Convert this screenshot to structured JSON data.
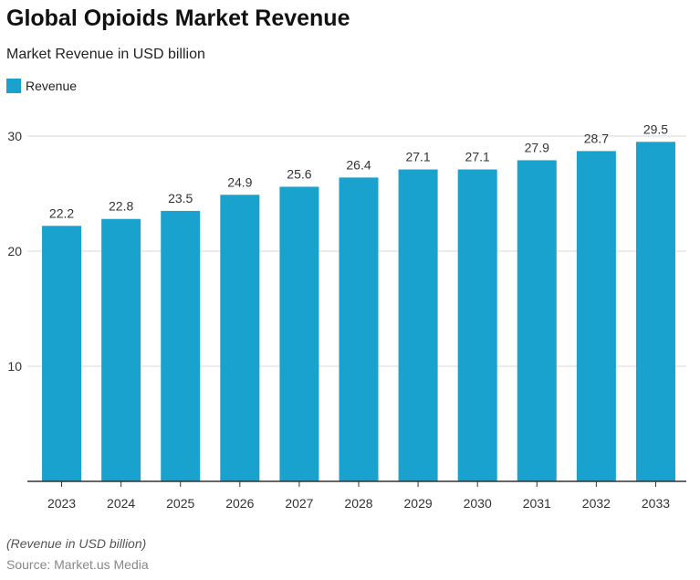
{
  "chart_data": {
    "type": "bar",
    "title": "Global Opioids Market Revenue",
    "subtitle": "Market Revenue in USD billion",
    "categories": [
      "2023",
      "2024",
      "2025",
      "2026",
      "2027",
      "2028",
      "2029",
      "2030",
      "2031",
      "2032",
      "2033"
    ],
    "series": [
      {
        "name": "Revenue",
        "values": [
          22.2,
          22.8,
          23.5,
          24.9,
          25.6,
          26.4,
          27.1,
          27.1,
          27.9,
          28.7,
          29.5
        ],
        "color": "#18a2cd"
      }
    ],
    "ylim": [
      0,
      30
    ],
    "yticks": [
      10,
      20,
      30
    ],
    "grid": true,
    "legend": "top-left",
    "note": "(Revenue in USD billion)",
    "source": "Source: Market.us Media"
  }
}
